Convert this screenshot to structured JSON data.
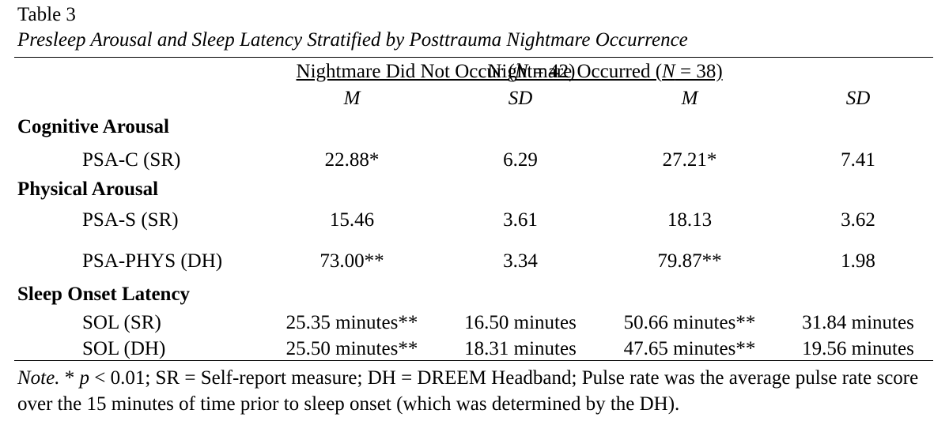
{
  "title": "Table 3",
  "subtitle": "Presleep Arousal and Sleep Latency Stratified by Posttrauma Nightmare Occurrence",
  "table": {
    "groups": [
      {
        "parts": [
          "Nightmare Did Not Occur (",
          "N",
          " = 42)"
        ]
      },
      {
        "parts": [
          "Nightmare Occurred (",
          "N",
          " = 38)"
        ]
      }
    ],
    "subheaders": [
      "M",
      "SD",
      "M",
      "SD"
    ],
    "sections": [
      {
        "label": "Cognitive Arousal",
        "rows": [
          {
            "label": "PSA-C (SR)",
            "cells": [
              "22.88*",
              "6.29",
              "27.21*",
              "7.41"
            ]
          }
        ]
      },
      {
        "label": "Physical Arousal",
        "rows": [
          {
            "label": "PSA-S (SR)",
            "cells": [
              "15.46",
              "3.61",
              "18.13",
              "3.62"
            ]
          },
          {
            "label": "PSA-PHYS (DH)",
            "cells": [
              "73.00**",
              "3.34",
              "79.87**",
              "1.98"
            ]
          }
        ]
      },
      {
        "label": "Sleep Onset Latency",
        "rows": [
          {
            "label": "SOL (SR)",
            "cells": [
              "25.35 minutes**",
              "16.50 minutes",
              "50.66 minutes**",
              "31.84 minutes"
            ]
          },
          {
            "label": "SOL (DH)",
            "cells": [
              "25.50 minutes**",
              "18.31 minutes",
              "47.65 minutes**",
              "19.56 minutes"
            ]
          }
        ]
      }
    ]
  },
  "note": {
    "parts": [
      "Note.",
      "* ",
      "p",
      " < 0.01; SR = Self-report measure; DH = DREEM Headband; Pulse rate was the average pulse rate score over the 15 minutes of time prior to sleep onset (which was determined by the DH)."
    ]
  }
}
